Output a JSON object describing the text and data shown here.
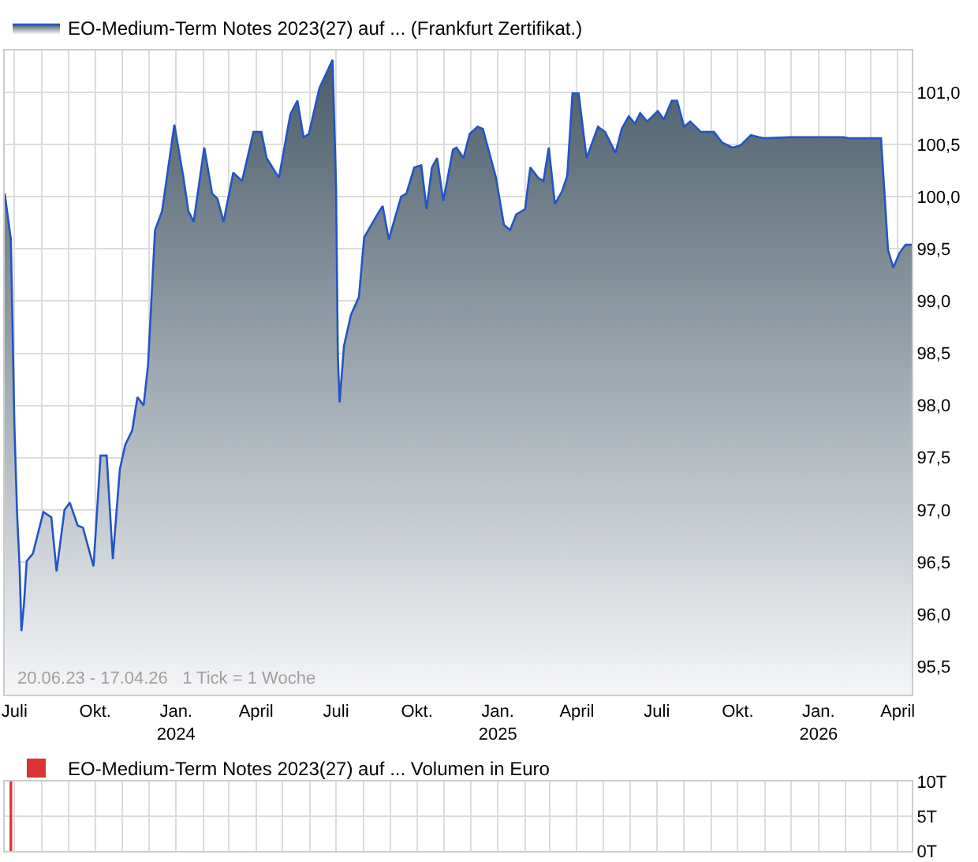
{
  "chart_data": [
    {
      "type": "area",
      "legend": "top left",
      "grid": true,
      "marker": "none",
      "line_style": "solid",
      "xlim": [
        "2023-06-20",
        "2026-04-17"
      ],
      "ylim": [
        95.23,
        101.4
      ],
      "xticks": [
        {
          "value": "2023-07-01",
          "label": "Juli"
        },
        {
          "value": "2023-08-01",
          "label": null
        },
        {
          "value": "2023-09-01",
          "label": null
        },
        {
          "value": "2023-10-01",
          "label": "Okt."
        },
        {
          "value": "2023-11-01",
          "label": null
        },
        {
          "value": "2023-12-01",
          "label": null
        },
        {
          "value": "2024-01-01",
          "label": "Jan.\n2024"
        },
        {
          "value": "2024-02-01",
          "label": null
        },
        {
          "value": "2024-03-01",
          "label": null
        },
        {
          "value": "2024-04-01",
          "label": "April"
        },
        {
          "value": "2024-05-01",
          "label": null
        },
        {
          "value": "2024-06-01",
          "label": null
        },
        {
          "value": "2024-07-01",
          "label": "Juli"
        },
        {
          "value": "2024-08-01",
          "label": null
        },
        {
          "value": "2024-09-01",
          "label": null
        },
        {
          "value": "2024-10-01",
          "label": "Okt."
        },
        {
          "value": "2024-11-01",
          "label": null
        },
        {
          "value": "2024-12-01",
          "label": null
        },
        {
          "value": "2025-01-01",
          "label": "Jan.\n2025"
        },
        {
          "value": "2025-02-01",
          "label": null
        },
        {
          "value": "2025-03-01",
          "label": null
        },
        {
          "value": "2025-04-01",
          "label": "April"
        },
        {
          "value": "2025-05-01",
          "label": null
        },
        {
          "value": "2025-06-01",
          "label": null
        },
        {
          "value": "2025-07-01",
          "label": "Juli"
        },
        {
          "value": "2025-08-01",
          "label": null
        },
        {
          "value": "2025-09-01",
          "label": null
        },
        {
          "value": "2025-10-01",
          "label": "Okt."
        },
        {
          "value": "2025-11-01",
          "label": null
        },
        {
          "value": "2025-12-01",
          "label": null
        },
        {
          "value": "2026-01-01",
          "label": "Jan.\n2026"
        },
        {
          "value": "2026-02-01",
          "label": null
        },
        {
          "value": "2026-03-01",
          "label": null
        },
        {
          "value": "2026-04-01",
          "label": "April"
        }
      ],
      "yticks": [
        {
          "value": 95.5,
          "label": "95,5"
        },
        {
          "value": 96,
          "label": "96,0"
        },
        {
          "value": 96.5,
          "label": "96,5"
        },
        {
          "value": 97,
          "label": "97,0"
        },
        {
          "value": 97.5,
          "label": "97,5"
        },
        {
          "value": 98,
          "label": "98,0"
        },
        {
          "value": 98.5,
          "label": "98,5"
        },
        {
          "value": 99,
          "label": "99,0"
        },
        {
          "value": 99.5,
          "label": "99,5"
        },
        {
          "value": 100,
          "label": "100,0"
        },
        {
          "value": 100.5,
          "label": "100,5"
        },
        {
          "value": 101,
          "label": "101,0"
        }
      ],
      "annotations": [
        "20.06.23 - 17.04.26   1 Tick = 1 Woche"
      ],
      "series": [
        {
          "name": "EO-Medium-Term Notes 2023(27) auf ... (Frankfurt Zertifikat.)",
          "color": "#2255c4",
          "x": [
            "2023-06-20",
            "2023-06-27",
            "2023-07-01",
            "2023-07-04",
            "2023-07-07",
            "2023-07-09",
            "2023-07-12",
            "2023-07-15",
            "2023-07-22",
            "2023-08-03",
            "2023-08-12",
            "2023-08-18",
            "2023-08-27",
            "2023-09-02",
            "2023-09-11",
            "2023-09-17",
            "2023-09-29",
            "2023-10-02",
            "2023-10-07",
            "2023-10-14",
            "2023-10-21",
            "2023-10-29",
            "2023-11-04",
            "2023-11-12",
            "2023-11-18",
            "2023-11-25",
            "2023-11-30",
            "2023-12-08",
            "2023-12-16",
            "2023-12-30",
            "2024-01-09",
            "2024-01-15",
            "2024-01-21",
            "2024-02-02",
            "2024-02-11",
            "2024-02-17",
            "2024-02-24",
            "2024-03-06",
            "2024-03-16",
            "2024-03-29",
            "2024-04-07",
            "2024-04-13",
            "2024-04-27",
            "2024-05-10",
            "2024-05-18",
            "2024-05-25",
            "2024-05-31",
            "2024-06-12",
            "2024-06-27",
            "2024-07-01",
            "2024-07-03",
            "2024-07-05",
            "2024-07-10",
            "2024-07-18",
            "2024-07-27",
            "2024-08-02",
            "2024-08-17",
            "2024-08-23",
            "2024-08-30",
            "2024-09-13",
            "2024-09-19",
            "2024-09-28",
            "2024-10-06",
            "2024-10-12",
            "2024-10-18",
            "2024-10-24",
            "2024-10-31",
            "2024-11-11",
            "2024-11-15",
            "2024-11-23",
            "2024-11-30",
            "2024-12-09",
            "2024-12-15",
            "2024-12-24",
            "2024-12-30",
            "2025-01-08",
            "2025-01-15",
            "2025-01-22",
            "2025-02-01",
            "2025-02-07",
            "2025-02-16",
            "2025-02-22",
            "2025-02-28",
            "2025-03-07",
            "2025-03-15",
            "2025-03-21",
            "2025-03-27",
            "2025-04-03",
            "2025-04-12",
            "2025-04-25",
            "2025-05-03",
            "2025-05-15",
            "2025-05-22",
            "2025-05-30",
            "2025-06-06",
            "2025-06-12",
            "2025-06-20",
            "2025-07-02",
            "2025-07-09",
            "2025-07-18",
            "2025-07-24",
            "2025-08-01",
            "2025-08-08",
            "2025-08-20",
            "2025-09-04",
            "2025-09-13",
            "2025-09-25",
            "2025-10-04",
            "2025-10-16",
            "2025-10-25",
            "2025-10-31",
            "2025-11-30",
            "2026-01-29",
            "2026-02-04",
            "2026-03-13",
            "2026-03-17",
            "2026-03-21",
            "2026-03-27",
            "2026-04-03",
            "2026-04-10",
            "2026-04-17"
          ],
          "values": [
            100.03,
            99.59,
            97.81,
            96.98,
            96.43,
            95.84,
            96.11,
            96.51,
            96.58,
            96.98,
            96.93,
            96.41,
            97.0,
            97.07,
            96.85,
            96.83,
            96.46,
            96.85,
            97.52,
            97.52,
            96.53,
            97.39,
            97.62,
            97.76,
            98.08,
            98.0,
            98.38,
            99.68,
            99.86,
            100.69,
            100.2,
            99.86,
            99.76,
            100.47,
            100.03,
            99.98,
            99.76,
            100.23,
            100.15,
            100.62,
            100.62,
            100.37,
            100.18,
            100.79,
            100.92,
            100.57,
            100.6,
            101.04,
            101.31,
            100.1,
            98.48,
            98.03,
            98.57,
            98.87,
            99.04,
            99.61,
            99.83,
            99.91,
            99.59,
            100.0,
            100.03,
            100.28,
            100.3,
            99.88,
            100.28,
            100.37,
            99.96,
            100.45,
            100.47,
            100.37,
            100.6,
            100.67,
            100.65,
            100.37,
            100.18,
            99.73,
            99.68,
            99.83,
            99.88,
            100.28,
            100.18,
            100.15,
            100.47,
            99.93,
            100.05,
            100.2,
            100.99,
            100.99,
            100.37,
            100.67,
            100.62,
            100.42,
            100.65,
            100.77,
            100.7,
            100.8,
            100.72,
            100.82,
            100.74,
            100.92,
            100.92,
            100.67,
            100.72,
            100.62,
            100.62,
            100.52,
            100.47,
            100.49,
            100.59,
            100.57,
            100.56,
            100.57,
            100.57,
            100.56,
            100.56,
            100.03,
            99.49,
            99.32,
            99.46,
            99.54,
            99.54
          ]
        }
      ]
    },
    {
      "type": "bar",
      "legend": "top left",
      "grid": true,
      "tick_labels": "y",
      "xlim": [
        "2023-06-20",
        "2026-04-17"
      ],
      "ylim": [
        0,
        10
      ],
      "xticks": [
        {
          "value": "2023-07-01",
          "label": null
        },
        {
          "value": "2023-08-01",
          "label": null
        },
        {
          "value": "2023-09-01",
          "label": null
        },
        {
          "value": "2023-10-01",
          "label": null
        },
        {
          "value": "2023-11-01",
          "label": null
        },
        {
          "value": "2023-12-01",
          "label": null
        },
        {
          "value": "2024-01-01",
          "label": null
        },
        {
          "value": "2024-02-01",
          "label": null
        },
        {
          "value": "2024-03-01",
          "label": null
        },
        {
          "value": "2024-04-01",
          "label": null
        },
        {
          "value": "2024-05-01",
          "label": null
        },
        {
          "value": "2024-06-01",
          "label": null
        },
        {
          "value": "2024-07-01",
          "label": null
        },
        {
          "value": "2024-08-01",
          "label": null
        },
        {
          "value": "2024-09-01",
          "label": null
        },
        {
          "value": "2024-10-01",
          "label": null
        },
        {
          "value": "2024-11-01",
          "label": null
        },
        {
          "value": "2024-12-01",
          "label": null
        },
        {
          "value": "2025-01-01",
          "label": null
        },
        {
          "value": "2025-02-01",
          "label": null
        },
        {
          "value": "2025-03-01",
          "label": null
        },
        {
          "value": "2025-04-01",
          "label": null
        },
        {
          "value": "2025-05-01",
          "label": null
        },
        {
          "value": "2025-06-01",
          "label": null
        },
        {
          "value": "2025-07-01",
          "label": null
        },
        {
          "value": "2025-08-01",
          "label": null
        },
        {
          "value": "2025-09-01",
          "label": null
        },
        {
          "value": "2025-10-01",
          "label": null
        },
        {
          "value": "2025-11-01",
          "label": null
        },
        {
          "value": "2025-12-01",
          "label": null
        },
        {
          "value": "2026-01-01",
          "label": null
        },
        {
          "value": "2026-02-01",
          "label": null
        },
        {
          "value": "2026-03-01",
          "label": null
        },
        {
          "value": "2026-04-01",
          "label": null
        }
      ],
      "yticks": [
        {
          "value": 0,
          "label": "0T"
        },
        {
          "value": 5,
          "label": "5T"
        },
        {
          "value": 10,
          "label": "10T"
        }
      ],
      "series": [
        {
          "name": "EO-Medium-Term Notes 2023(27) auf ... Volumen in Euro",
          "color": "#dd3333",
          "x": [
            "2023-06-27"
          ],
          "values": [
            10
          ]
        }
      ]
    }
  ]
}
